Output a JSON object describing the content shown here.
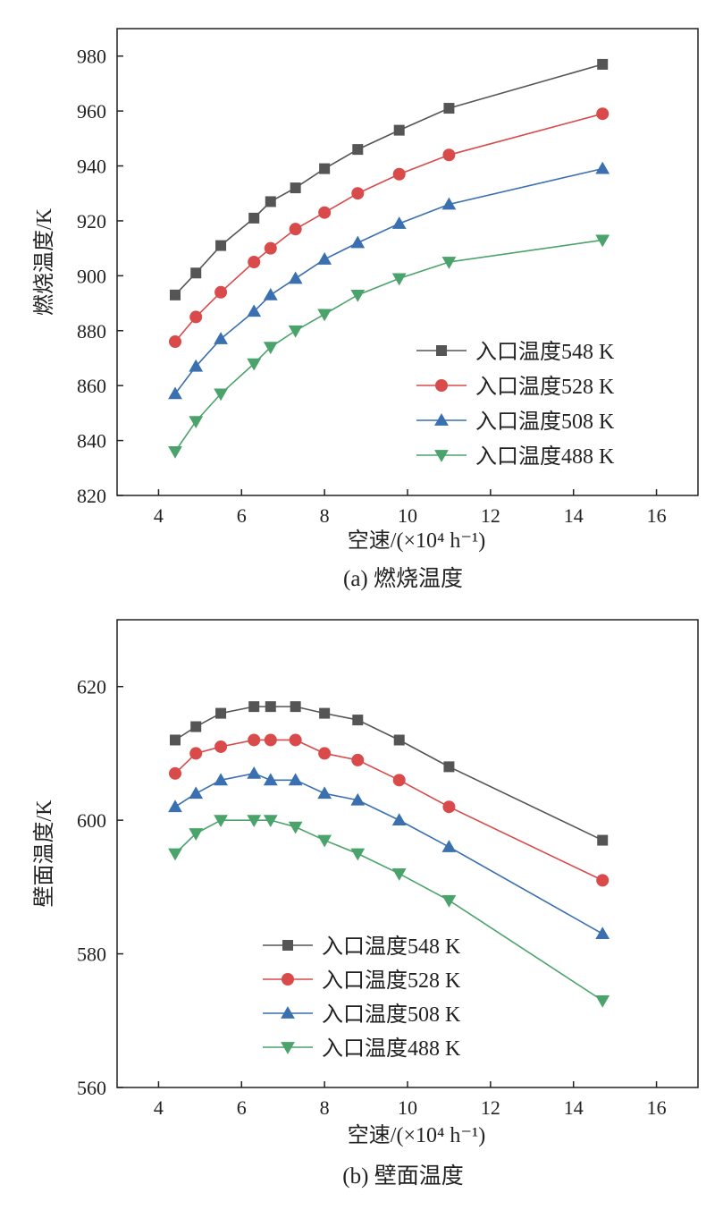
{
  "chart_data": [
    {
      "type": "line",
      "caption": "(a) 燃烧温度",
      "xlabel": "空速/(×10⁴ h⁻¹)",
      "ylabel": "燃烧温度/K",
      "xlim": [
        3,
        17
      ],
      "ylim": [
        820,
        990
      ],
      "xticks": [
        4,
        6,
        8,
        10,
        12,
        14,
        16
      ],
      "yticks": [
        820,
        840,
        860,
        880,
        900,
        920,
        940,
        960,
        980
      ],
      "legend_position": "lower-right",
      "x": [
        4.4,
        4.9,
        5.5,
        6.3,
        6.7,
        7.3,
        8.0,
        8.8,
        9.8,
        11.0,
        14.7
      ],
      "series": [
        {
          "name": "入口温度548 K",
          "color": "#555555",
          "marker": "square",
          "values": [
            893,
            901,
            911,
            921,
            927,
            932,
            939,
            946,
            953,
            961,
            977
          ]
        },
        {
          "name": "入口温度528 K",
          "color": "#d94a4a",
          "marker": "circle",
          "values": [
            876,
            885,
            894,
            905,
            910,
            917,
            923,
            930,
            937,
            944,
            959
          ]
        },
        {
          "name": "入口温度508 K",
          "color": "#3a6fb0",
          "marker": "triangle-up",
          "values": [
            857,
            867,
            877,
            887,
            893,
            899,
            906,
            912,
            919,
            926,
            939
          ]
        },
        {
          "name": "入口温度488 K",
          "color": "#4aa36a",
          "marker": "triangle-down",
          "values": [
            836,
            847,
            857,
            868,
            874,
            880,
            886,
            893,
            899,
            905,
            913
          ]
        }
      ]
    },
    {
      "type": "line",
      "caption": "(b) 壁面温度",
      "xlabel": "空速/(×10⁴ h⁻¹)",
      "ylabel": "壁面温度/K",
      "xlim": [
        3,
        17
      ],
      "ylim": [
        560,
        630
      ],
      "xticks": [
        4,
        6,
        8,
        10,
        12,
        14,
        16
      ],
      "yticks": [
        560,
        580,
        600,
        620
      ],
      "legend_position": "lower-left",
      "x": [
        4.4,
        4.9,
        5.5,
        6.3,
        6.7,
        7.3,
        8.0,
        8.8,
        9.8,
        11.0,
        14.7
      ],
      "series": [
        {
          "name": "入口温度548 K",
          "color": "#555555",
          "marker": "square",
          "values": [
            612,
            614,
            616,
            617,
            617,
            617,
            616,
            615,
            612,
            608,
            597
          ]
        },
        {
          "name": "入口温度528 K",
          "color": "#d94a4a",
          "marker": "circle",
          "values": [
            607,
            610,
            611,
            612,
            612,
            612,
            610,
            609,
            606,
            602,
            591
          ]
        },
        {
          "name": "入口温度508 K",
          "color": "#3a6fb0",
          "marker": "triangle-up",
          "values": [
            602,
            604,
            606,
            607,
            606,
            606,
            604,
            603,
            600,
            596,
            583
          ]
        },
        {
          "name": "入口温度488 K",
          "color": "#4aa36a",
          "marker": "triangle-down",
          "values": [
            595,
            598,
            600,
            600,
            600,
            599,
            597,
            595,
            592,
            588,
            573
          ]
        }
      ]
    }
  ]
}
